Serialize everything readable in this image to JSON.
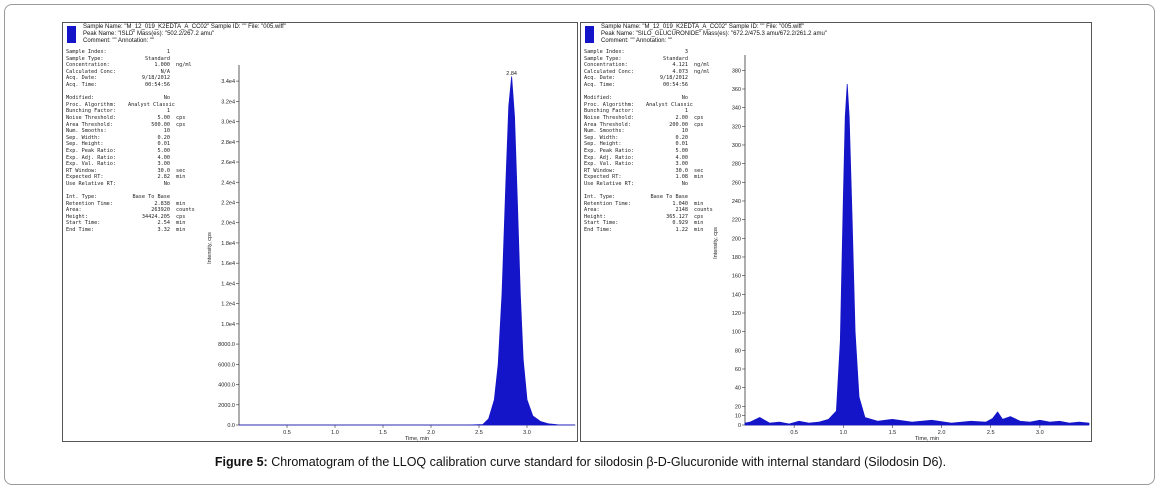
{
  "figure": {
    "label": "Figure 5:",
    "caption": "Chromatogram of the LLOQ calibration curve standard for silodosin β-D-Glucuronide with internal standard (Silodosin D6)."
  },
  "colors": {
    "trace": "#1414c8",
    "axis": "#333333"
  },
  "panels": [
    {
      "header": {
        "line1": "Sample Name: \"M_12_019_K2EDTA_A_CC02\"    Sample ID: \"\"    File: \"005.wiff\"",
        "line2": "Peak Name: \"ISLD\"    Mass(es): \"502.2/267.2 amu\"",
        "line3": "Comment: \"\"    Annotation: \"\""
      },
      "info": [
        {
          "k": "Sample Index:",
          "v": "1",
          "u": ""
        },
        {
          "k": "Sample Type:",
          "v": "Standard",
          "u": ""
        },
        {
          "k": "Concentration:",
          "v": "1.000",
          "u": "ng/ml"
        },
        {
          "k": "Calculated Conc:",
          "v": "N/A",
          "u": ""
        },
        {
          "k": "Acq. Date:",
          "v": "9/18/2012",
          "u": ""
        },
        {
          "k": "Acq. Time:",
          "v": "00:54:56",
          "u": ""
        },
        {
          "k": "",
          "v": "",
          "u": ""
        },
        {
          "k": "Modified:",
          "v": "No",
          "u": ""
        },
        {
          "k": "Proc. Algorithm:",
          "v": "Analyst Classic",
          "u": ""
        },
        {
          "k": "Bunching Factor:",
          "v": "1",
          "u": ""
        },
        {
          "k": "Noise Threshold:",
          "v": "5.00",
          "u": "cps"
        },
        {
          "k": "Area Threshold:",
          "v": "500.00",
          "u": "cps"
        },
        {
          "k": "Num. Smooths:",
          "v": "10",
          "u": ""
        },
        {
          "k": "Sep. Width:",
          "v": "0.20",
          "u": ""
        },
        {
          "k": "Sep. Height:",
          "v": "0.01",
          "u": ""
        },
        {
          "k": "Exp. Peak Ratio:",
          "v": "5.00",
          "u": ""
        },
        {
          "k": "Exp. Adj. Ratio:",
          "v": "4.00",
          "u": ""
        },
        {
          "k": "Exp. Val. Ratio:",
          "v": "3.00",
          "u": ""
        },
        {
          "k": "RT Window:",
          "v": "30.0",
          "u": "sec"
        },
        {
          "k": "Expected RT:",
          "v": "2.82",
          "u": "min"
        },
        {
          "k": "Use Relative RT:",
          "v": "No",
          "u": ""
        },
        {
          "k": "",
          "v": "",
          "u": ""
        },
        {
          "k": "Int. Type:",
          "v": "Base To Base",
          "u": ""
        },
        {
          "k": "Retention Time:",
          "v": "2.838",
          "u": "min"
        },
        {
          "k": "Area:",
          "v": "263920",
          "u": "counts"
        },
        {
          "k": "Height:",
          "v": "34424.205",
          "u": "cps"
        },
        {
          "k": "Start Time:",
          "v": "2.54",
          "u": "min"
        },
        {
          "k": "End Time:",
          "v": "3.32",
          "u": "min"
        }
      ]
    },
    {
      "header": {
        "line1": "Sample Name: \"M_12_019_K2EDTA_A_CC02\"    Sample ID: \"\"    File: \"005.wiff\"",
        "line2": "Peak Name: \"SILO_GLUCURONIDE\"    Mass(es): \"672.2/475.3 amu/672.2/261.2 amu\"",
        "line3": "Comment: \"\"    Annotation: \"\""
      },
      "info": [
        {
          "k": "Sample Index:",
          "v": "3",
          "u": ""
        },
        {
          "k": "Sample Type:",
          "v": "Standard",
          "u": ""
        },
        {
          "k": "Concentration:",
          "v": "4.121",
          "u": "ng/ml"
        },
        {
          "k": "Calculated Conc:",
          "v": "4.073",
          "u": "ng/ml"
        },
        {
          "k": "Acq. Date:",
          "v": "9/18/2012",
          "u": ""
        },
        {
          "k": "Acq. Time:",
          "v": "00:54:56",
          "u": ""
        },
        {
          "k": "",
          "v": "",
          "u": ""
        },
        {
          "k": "Modified:",
          "v": "No",
          "u": ""
        },
        {
          "k": "Proc. Algorithm:",
          "v": "Analyst Classic",
          "u": ""
        },
        {
          "k": "Bunching Factor:",
          "v": "1",
          "u": ""
        },
        {
          "k": "Noise Threshold:",
          "v": "2.00",
          "u": "cps"
        },
        {
          "k": "Area Threshold:",
          "v": "200.00",
          "u": "cps"
        },
        {
          "k": "Num. Smooths:",
          "v": "10",
          "u": ""
        },
        {
          "k": "Sep. Width:",
          "v": "0.20",
          "u": ""
        },
        {
          "k": "Sep. Height:",
          "v": "0.01",
          "u": ""
        },
        {
          "k": "Exp. Peak Ratio:",
          "v": "5.00",
          "u": ""
        },
        {
          "k": "Exp. Adj. Ratio:",
          "v": "4.00",
          "u": ""
        },
        {
          "k": "Exp. Val. Ratio:",
          "v": "3.00",
          "u": ""
        },
        {
          "k": "RT Window:",
          "v": "30.0",
          "u": "sec"
        },
        {
          "k": "Expected RT:",
          "v": "1.08",
          "u": "min"
        },
        {
          "k": "Use Relative RT:",
          "v": "No",
          "u": ""
        },
        {
          "k": "",
          "v": "",
          "u": ""
        },
        {
          "k": "Int. Type:",
          "v": "Base To Base",
          "u": ""
        },
        {
          "k": "Retention Time:",
          "v": "1.040",
          "u": "min"
        },
        {
          "k": "Area:",
          "v": "2148",
          "u": "counts"
        },
        {
          "k": "Height:",
          "v": "365.127",
          "u": "cps"
        },
        {
          "k": "Start Time:",
          "v": "0.929",
          "u": "min"
        },
        {
          "k": "End Time:",
          "v": "1.22",
          "u": "min"
        }
      ]
    }
  ],
  "chart_data": [
    {
      "type": "line",
      "fill": true,
      "xlabel": "Time, min",
      "ylabel": "Intensity, cps",
      "xlim": [
        0.0,
        3.5
      ],
      "ylim": [
        0,
        35000
      ],
      "xticks": [
        0.5,
        1.0,
        1.5,
        2.0,
        2.5,
        3.0
      ],
      "xtick_labels": [
        "0.5",
        "1.0",
        "1.5",
        "2.0",
        "2.5",
        "3.0"
      ],
      "yticks": [
        0,
        2000,
        4000,
        6000,
        8000,
        10000,
        12000,
        14000,
        16000,
        18000,
        20000,
        22000,
        24000,
        26000,
        28000,
        30000,
        32000,
        34000
      ],
      "ytick_labels": [
        "0.0",
        "2000.0",
        "4000.0",
        "6000.0",
        "8000.0",
        "1.0e4",
        "1.2e4",
        "1.4e4",
        "1.6e4",
        "1.8e4",
        "2.0e4",
        "2.2e4",
        "2.4e4",
        "2.6e4",
        "2.8e4",
        "3.0e4",
        "3.2e4",
        "3.4e4"
      ],
      "peak_label": "2.84",
      "peak": {
        "x": 2.84,
        "y": 34424
      },
      "x": [
        0.0,
        2.4,
        2.54,
        2.6,
        2.66,
        2.7,
        2.74,
        2.78,
        2.81,
        2.84,
        2.87,
        2.9,
        2.93,
        2.96,
        3.0,
        3.06,
        3.14,
        3.22,
        3.32,
        3.5
      ],
      "y": [
        0,
        0,
        50,
        600,
        2500,
        6000,
        13000,
        24000,
        31500,
        34424,
        30500,
        22000,
        13000,
        6500,
        2500,
        900,
        350,
        120,
        20,
        0
      ]
    },
    {
      "type": "line",
      "fill": true,
      "xlabel": "Time, min",
      "ylabel": "Intensity, cps",
      "xlim": [
        0.0,
        3.5
      ],
      "ylim": [
        0,
        390
      ],
      "xticks": [
        0.5,
        1.0,
        1.5,
        2.0,
        2.5,
        3.0
      ],
      "xtick_labels": [
        "0.5",
        "1.0",
        "1.5",
        "2.0",
        "2.5",
        "3.0"
      ],
      "yticks": [
        0,
        10,
        20,
        40,
        60,
        80,
        100,
        120,
        140,
        160,
        180,
        200,
        220,
        240,
        260,
        280,
        300,
        320,
        340,
        360,
        380
      ],
      "ytick_labels": [
        "0",
        "10",
        "20",
        "40",
        "60",
        "80",
        "100",
        "120",
        "140",
        "160",
        "180",
        "200",
        "220",
        "240",
        "260",
        "280",
        "300",
        "320",
        "340",
        "360",
        "380"
      ],
      "peak": {
        "x": 1.04,
        "y": 365
      },
      "x": [
        0.0,
        0.05,
        0.15,
        0.25,
        0.35,
        0.45,
        0.55,
        0.65,
        0.75,
        0.85,
        0.93,
        0.97,
        1.0,
        1.02,
        1.04,
        1.06,
        1.09,
        1.12,
        1.16,
        1.22,
        1.35,
        1.5,
        1.7,
        1.9,
        2.1,
        2.3,
        2.45,
        2.52,
        2.57,
        2.62,
        2.7,
        2.8,
        2.9,
        3.0,
        3.1,
        3.2,
        3.3,
        3.4,
        3.5
      ],
      "y": [
        2,
        3,
        8,
        2,
        3,
        1,
        4,
        2,
        3,
        6,
        15,
        90,
        240,
        330,
        365,
        330,
        220,
        100,
        30,
        8,
        4,
        6,
        3,
        5,
        2,
        4,
        3,
        7,
        14,
        6,
        9,
        4,
        3,
        5,
        3,
        4,
        2,
        3,
        2
      ]
    }
  ]
}
